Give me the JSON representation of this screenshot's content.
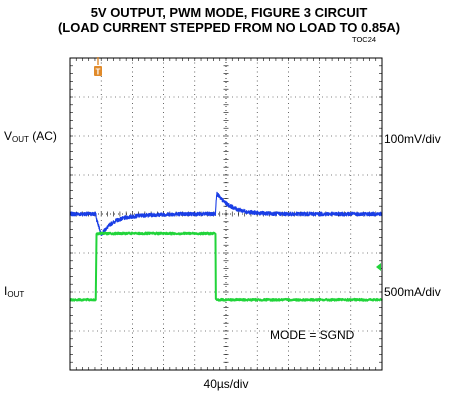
{
  "title_line1": "5V OUTPUT, PWM MODE, FIGURE 3 CIRCUIT",
  "title_line2": "(LOAD CURRENT STEPPED FROM NO LOAD TO 0.85A)",
  "figure_ref": "TOC24",
  "chart_data": {
    "type": "line",
    "title": "5V OUTPUT, PWM MODE, FIGURE 3 CIRCUIT (LOAD CURRENT STEPPED FROM NO LOAD TO 0.85A)",
    "x_label": "40µs/div",
    "x_divisions": 10,
    "y_divisions": 8,
    "grid": true,
    "annotation": "MODE = SGND",
    "trigger_marker": "T",
    "channel_marker_color": "#e08a2a",
    "channels": [
      {
        "name_main": "V",
        "name_sub": "OUT",
        "name_suffix": " (AC)",
        "scale": "100mV/div",
        "color": "#1a3ee6",
        "unit": "mV",
        "noise_mV": 5,
        "points": [
          [
            0,
            0
          ],
          [
            33.5,
            0
          ],
          [
            33.6,
            -12
          ],
          [
            36,
            -25
          ],
          [
            40,
            -52
          ],
          [
            46,
            -38
          ],
          [
            52,
            -26
          ],
          [
            60,
            -16
          ],
          [
            72,
            -9
          ],
          [
            90,
            -4
          ],
          [
            110,
            -2
          ],
          [
            140,
            0
          ],
          [
            186.5,
            0
          ],
          [
            186.6,
            10
          ],
          [
            188,
            53
          ],
          [
            194,
            38
          ],
          [
            202,
            24
          ],
          [
            214,
            12
          ],
          [
            228,
            5
          ],
          [
            245,
            2
          ],
          [
            262,
            1
          ],
          [
            280,
            0
          ],
          [
            400,
            0
          ]
        ]
      },
      {
        "name_main": "I",
        "name_sub": "OUT",
        "name_suffix": "",
        "scale": "500mA/div",
        "color": "#21d43a",
        "unit": "A",
        "noise_A": 0.012,
        "points": [
          [
            0,
            0
          ],
          [
            33.3,
            0
          ],
          [
            33.7,
            0.85
          ],
          [
            186.6,
            0.85
          ],
          [
            187.0,
            0
          ],
          [
            400,
            0
          ]
        ]
      }
    ]
  }
}
